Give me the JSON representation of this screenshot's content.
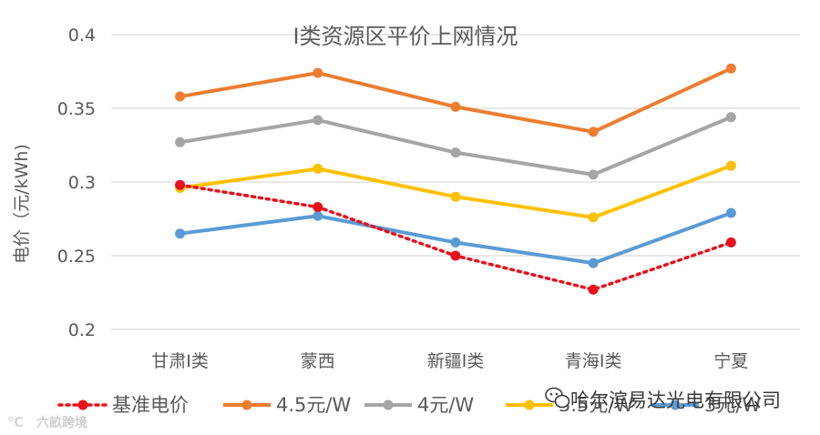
{
  "chart_data": {
    "type": "line",
    "title": "I类资源区平价上网情况",
    "xlabel": "",
    "ylabel": "电价（元/kWh)",
    "categories": [
      "甘肃I类",
      "蒙西",
      "新疆I类",
      "青海I类",
      "宁夏"
    ],
    "ylim": [
      0.2,
      0.4
    ],
    "yticks": [
      "0.2",
      "0.25",
      "0.3",
      "0.35",
      "0.4"
    ],
    "ytick_values": [
      0.2,
      0.25,
      0.3,
      0.35,
      0.4
    ],
    "grid": true,
    "legend_position": "bottom",
    "series": [
      {
        "name": "基准电价",
        "values": [
          0.298,
          0.283,
          0.25,
          0.227,
          0.259
        ],
        "color": "#e8101a",
        "style": "dotted"
      },
      {
        "name": "4.5元/W",
        "values": [
          0.358,
          0.374,
          0.351,
          0.334,
          0.377
        ],
        "color": "#ed7d31",
        "style": "solid"
      },
      {
        "name": "4元/W",
        "values": [
          0.327,
          0.342,
          0.32,
          0.305,
          0.344
        ],
        "color": "#a5a5a5",
        "style": "solid"
      },
      {
        "name": "3.5元/W",
        "values": [
          0.296,
          0.309,
          0.29,
          0.276,
          0.311
        ],
        "color": "#ffc000",
        "style": "solid"
      },
      {
        "name": "3元/W",
        "values": [
          0.265,
          0.277,
          0.259,
          0.245,
          0.279
        ],
        "color": "#5b9bd5",
        "style": "solid"
      }
    ]
  },
  "watermarks": {
    "wechat": "哈尔滨易达光电有限公司",
    "corner": "六畝跨境"
  }
}
